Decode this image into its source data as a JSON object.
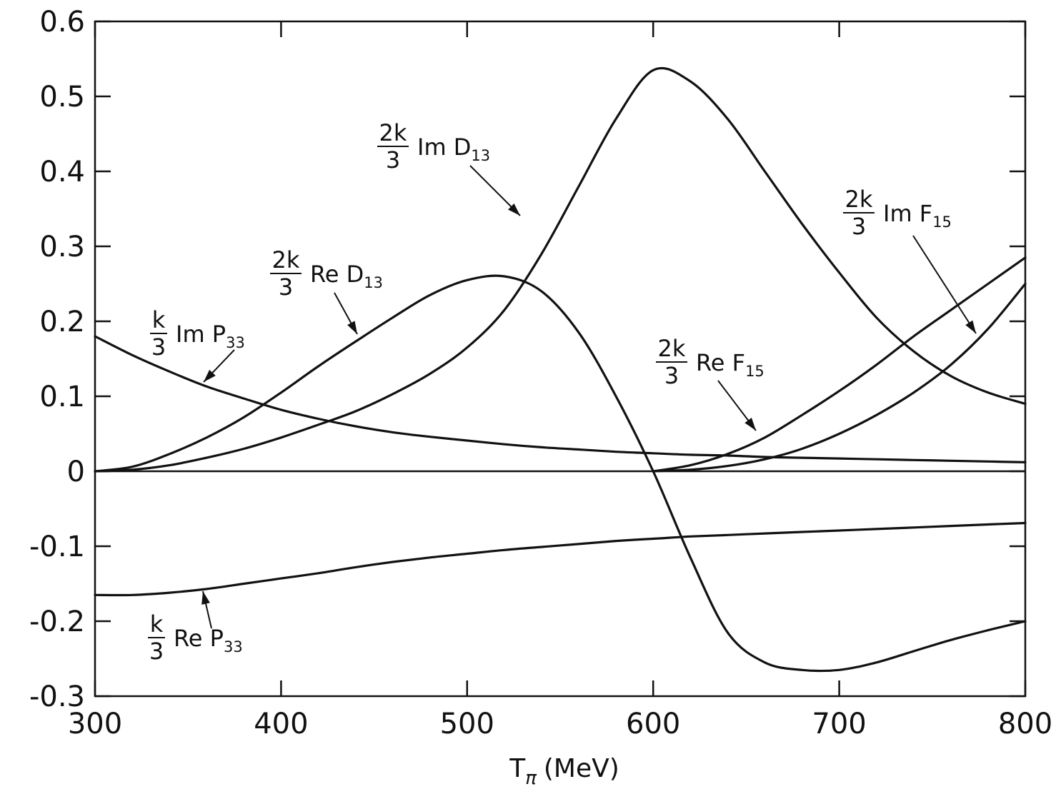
{
  "chart_data": {
    "type": "line",
    "xlabel": "T",
    "xlabel_sub": "π",
    "xlabel_unit": "(MeV)",
    "ylabel": "",
    "xlim": [
      300,
      800
    ],
    "ylim": [
      -0.3,
      0.6
    ],
    "x_ticks": [
      300,
      400,
      500,
      600,
      700,
      800
    ],
    "x_tick_labels": [
      "300",
      "400",
      "500",
      "600",
      "700",
      "800"
    ],
    "y_ticks": [
      0.6,
      0.5,
      0.4,
      0.3,
      0.2,
      0.1,
      0,
      -0.1,
      -0.2,
      -0.3
    ],
    "y_tick_labels": [
      "0.6",
      "0.5",
      "0.4",
      "0.3",
      "0.2",
      "0.1",
      "0",
      "-0.1",
      "-0.2",
      "-0.3"
    ],
    "grid": false,
    "series": [
      {
        "id": "im-d13",
        "label": {
          "num": "2k",
          "den": "3",
          "text": "Im D",
          "sub": "13"
        },
        "x": [
          300,
          320,
          340,
          360,
          380,
          400,
          420,
          440,
          460,
          480,
          500,
          520,
          540,
          560,
          580,
          600,
          620,
          640,
          660,
          680,
          700,
          720,
          740,
          760,
          780,
          800
        ],
        "y": [
          0.0,
          0.002,
          0.008,
          0.018,
          0.03,
          0.045,
          0.062,
          0.08,
          0.103,
          0.13,
          0.165,
          0.215,
          0.29,
          0.38,
          0.47,
          0.535,
          0.52,
          0.47,
          0.4,
          0.33,
          0.265,
          0.205,
          0.16,
          0.127,
          0.105,
          0.09
        ]
      },
      {
        "id": "re-d13",
        "label": {
          "num": "2k",
          "den": "3",
          "text": "Re D",
          "sub": "13"
        },
        "x": [
          300,
          320,
          340,
          360,
          380,
          400,
          420,
          440,
          460,
          480,
          500,
          520,
          540,
          560,
          580,
          600,
          620,
          640,
          660,
          680,
          700,
          720,
          740,
          760,
          780,
          800
        ],
        "y": [
          0.0,
          0.006,
          0.023,
          0.045,
          0.072,
          0.105,
          0.14,
          0.173,
          0.205,
          0.235,
          0.255,
          0.26,
          0.24,
          0.185,
          0.1,
          0.0,
          -0.115,
          -0.215,
          -0.255,
          -0.265,
          -0.265,
          -0.255,
          -0.24,
          -0.225,
          -0.212,
          -0.2
        ]
      },
      {
        "id": "im-p33",
        "label": {
          "num": "k",
          "den": "3",
          "text": "Im P",
          "sub": "33"
        },
        "x": [
          300,
          320,
          340,
          360,
          380,
          400,
          420,
          440,
          460,
          480,
          500,
          520,
          540,
          560,
          580,
          600,
          620,
          640,
          660,
          680,
          700,
          720,
          740,
          760,
          780,
          800
        ],
        "y": [
          0.18,
          0.155,
          0.133,
          0.113,
          0.097,
          0.082,
          0.07,
          0.06,
          0.052,
          0.046,
          0.041,
          0.036,
          0.032,
          0.029,
          0.026,
          0.024,
          0.022,
          0.021,
          0.019,
          0.018,
          0.017,
          0.016,
          0.015,
          0.014,
          0.013,
          0.012
        ]
      },
      {
        "id": "re-p33",
        "label": {
          "num": "k",
          "den": "3",
          "text": "Re P",
          "sub": "33"
        },
        "x": [
          300,
          320,
          340,
          360,
          380,
          400,
          420,
          440,
          460,
          480,
          500,
          520,
          540,
          560,
          580,
          600,
          620,
          640,
          660,
          680,
          700,
          720,
          740,
          760,
          780,
          800
        ],
        "y": [
          -0.165,
          -0.165,
          -0.162,
          -0.157,
          -0.15,
          -0.143,
          -0.136,
          -0.128,
          -0.121,
          -0.115,
          -0.11,
          -0.105,
          -0.101,
          -0.097,
          -0.093,
          -0.09,
          -0.087,
          -0.085,
          -0.083,
          -0.081,
          -0.079,
          -0.077,
          -0.075,
          -0.073,
          -0.071,
          -0.069
        ]
      },
      {
        "id": "re-f15",
        "label": {
          "num": "2k",
          "den": "3",
          "text": "Re  F",
          "sub": "15"
        },
        "x": [
          600,
          620,
          640,
          660,
          680,
          700,
          720,
          740,
          760,
          780,
          800
        ],
        "y": [
          0.0,
          0.008,
          0.023,
          0.045,
          0.075,
          0.107,
          0.142,
          0.18,
          0.215,
          0.25,
          0.285
        ]
      },
      {
        "id": "im-f15",
        "label": {
          "num": "2k",
          "den": "3",
          "text": "Im F",
          "sub": "15"
        },
        "x": [
          600,
          620,
          640,
          660,
          680,
          700,
          720,
          740,
          760,
          780,
          800
        ],
        "y": [
          0.0,
          0.002,
          0.007,
          0.016,
          0.03,
          0.05,
          0.075,
          0.105,
          0.142,
          0.19,
          0.25
        ]
      }
    ],
    "zero_line": 0
  }
}
